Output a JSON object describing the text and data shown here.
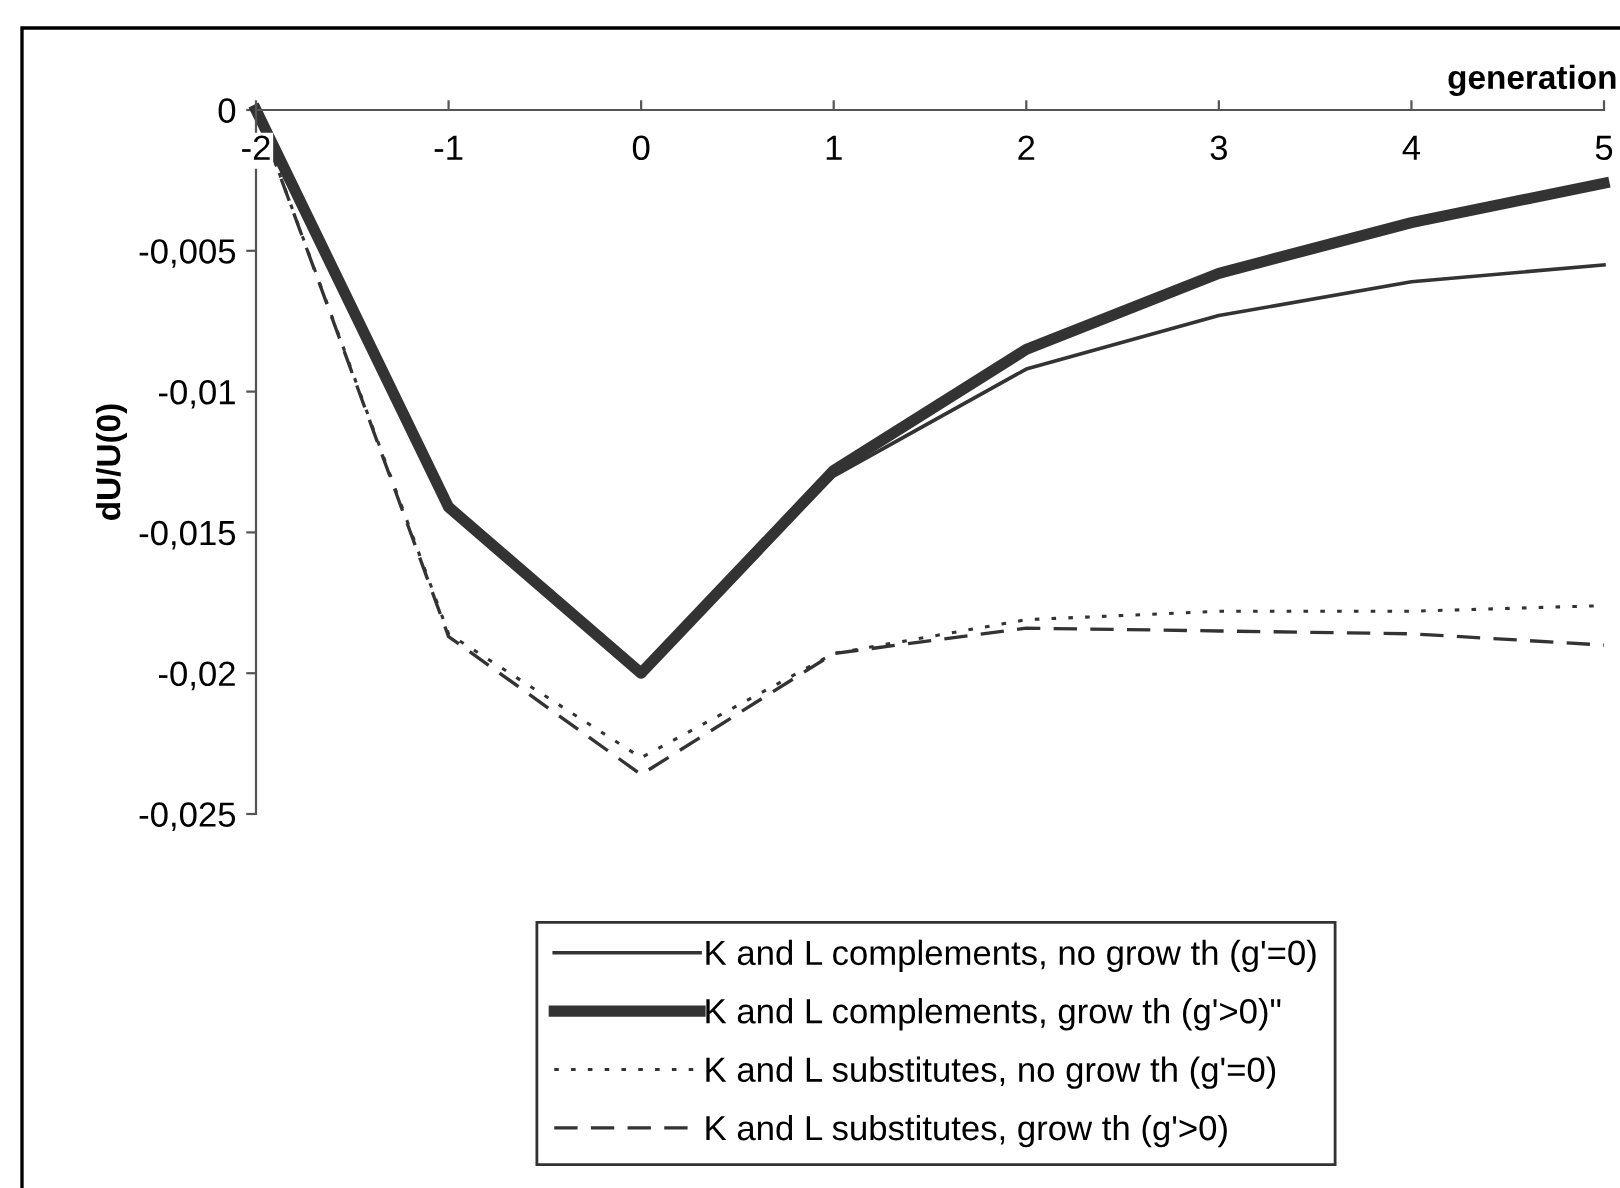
{
  "chart_data": {
    "type": "line",
    "xlabel": "generation",
    "ylabel": "dU/U(0)",
    "x": [
      -2,
      -1,
      0,
      1,
      2,
      3,
      4,
      5
    ],
    "xlim": [
      -2,
      5
    ],
    "xticks": [
      -2,
      -1,
      0,
      1,
      2,
      3,
      4,
      5
    ],
    "ylim": [
      -0.025,
      0
    ],
    "yticks": [
      {
        "value": -0.025,
        "label": "-0,025"
      },
      {
        "value": -0.02,
        "label": "-0,02"
      },
      {
        "value": -0.015,
        "label": "-0,015"
      },
      {
        "value": -0.01,
        "label": "-0,01"
      },
      {
        "value": -0.005,
        "label": "-0,005"
      },
      {
        "value": 0,
        "label": "0"
      }
    ],
    "grid": false,
    "legend": "bottom",
    "marker": "none",
    "series": [
      {
        "name": "K and L complements, no grow th (g'=0)",
        "color": "#333333",
        "line_style": "solid",
        "values": [
          0,
          -0.0141,
          -0.02,
          -0.013,
          -0.0092,
          -0.0073,
          -0.0061,
          -0.0055
        ]
      },
      {
        "name": "K and L complements, grow th (g'>0)\"",
        "color": "#333333",
        "line_style": "solid",
        "values": [
          0,
          -0.0141,
          -0.02,
          -0.0128,
          -0.0085,
          -0.0058,
          -0.004,
          -0.0026
        ]
      },
      {
        "name": "K and L substitutes, no grow th (g'=0)",
        "color": "#333333",
        "line_style": "dotted",
        "values": [
          0,
          -0.0186,
          -0.023,
          -0.0193,
          -0.0181,
          -0.0178,
          -0.0178,
          -0.0176
        ]
      },
      {
        "name": "K and L substitutes, grow th (g'>0)",
        "color": "#333333",
        "line_style": "dashed",
        "values": [
          0,
          -0.0187,
          -0.0236,
          -0.0193,
          -0.0184,
          -0.0185,
          -0.0186,
          -0.019
        ]
      }
    ]
  }
}
